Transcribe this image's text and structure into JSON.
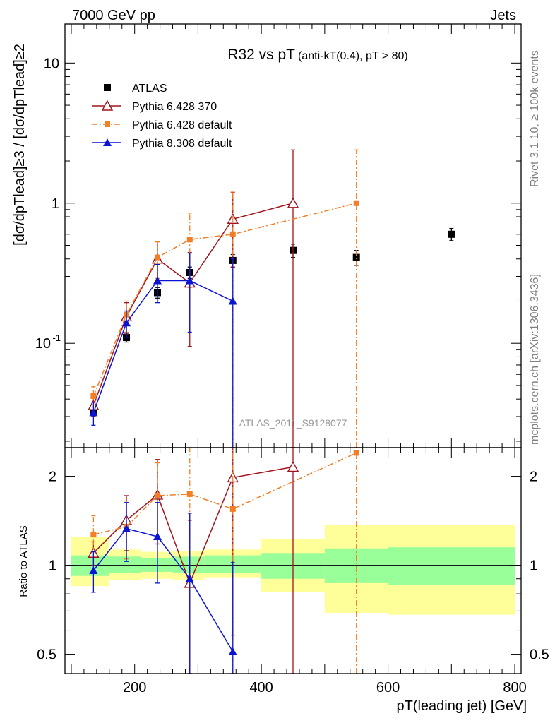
{
  "header": {
    "left": "7000 GeV pp",
    "right": "Jets"
  },
  "side_texts": {
    "right_top": "Rivet 3.1.10, ≥ 100k events",
    "right_bottom": "mcplots.cern.ch [arXiv:1306.3436]"
  },
  "chart_data": [
    {
      "type": "line",
      "title": "R32 vs pT",
      "subtitle": "(anti-kT(0.4), pT > 80)",
      "ylabel": "[dσ/dpTlead]≥3 / [dσ/dpTlead]≥2",
      "xlabel": "",
      "yscale": "log",
      "xlim": [
        90,
        810
      ],
      "ylim": [
        0.018,
        19
      ],
      "y_ticks": [
        "10",
        "1",
        "10^-1"
      ],
      "analysis_label": "ATLAS_2011_S9128077",
      "legend_position": "top-left",
      "series": [
        {
          "name": "ATLAS",
          "color": "#000000",
          "marker": "square-filled",
          "x": [
            135,
            187,
            236,
            287,
            355,
            450,
            550,
            700
          ],
          "y": [
            0.033,
            0.11,
            0.23,
            0.32,
            0.39,
            0.46,
            0.41,
            0.6
          ],
          "err_low": [
            0.003,
            0.008,
            0.02,
            0.03,
            0.04,
            0.05,
            0.05,
            0.06
          ],
          "err_high": [
            0.003,
            0.008,
            0.02,
            0.03,
            0.04,
            0.05,
            0.05,
            0.06
          ]
        },
        {
          "name": "Pythia 6.428 370",
          "color": "#a0141e",
          "marker": "triangle-open",
          "x": [
            135,
            187,
            236,
            287,
            355,
            450
          ],
          "y": [
            0.036,
            0.155,
            0.4,
            0.27,
            0.77,
            1.0
          ],
          "err_low": [
            0.006,
            0.04,
            0.13,
            0.175,
            0.42,
            1.0
          ],
          "err_high": [
            0.006,
            0.04,
            0.13,
            0.175,
            0.42,
            1.4
          ]
        },
        {
          "name": "Pythia 6.428 default",
          "color": "#f07f28",
          "marker": "square-small",
          "dash": "dashdot",
          "x": [
            135,
            187,
            236,
            287,
            355,
            550
          ],
          "y": [
            0.042,
            0.16,
            0.41,
            0.55,
            0.6,
            1.0
          ],
          "err_low": [
            0.007,
            0.04,
            0.12,
            0.3,
            0.6,
            1.0
          ],
          "err_high": [
            0.007,
            0.04,
            0.12,
            0.3,
            0.6,
            1.4
          ]
        },
        {
          "name": "Pythia 8.308 default",
          "color": "#0a14d2",
          "marker": "triangle-filled",
          "x": [
            135,
            187,
            236,
            287,
            355
          ],
          "y": [
            0.032,
            0.14,
            0.28,
            0.28,
            0.2
          ],
          "err_low": [
            0.006,
            0.03,
            0.085,
            0.16,
            0.2
          ],
          "err_high": [
            0.006,
            0.03,
            0.085,
            0.16,
            0.2
          ]
        }
      ]
    },
    {
      "type": "line",
      "title": "",
      "xlabel": "pT(leading jet) [GeV]",
      "ylabel": "Ratio to ATLAS",
      "xlim": [
        90,
        810
      ],
      "ylim": [
        0.43,
        2.5
      ],
      "yscale": "log",
      "x_ticks": [
        200,
        400,
        600,
        800
      ],
      "y_ticks": [
        "0.5",
        "1",
        "2"
      ],
      "reference_line": 1,
      "uncertainty_bands": {
        "x_edges": [
          100,
          160,
          210,
          260,
          310,
          400,
          500,
          600,
          800
        ],
        "stat_low": [
          0.92,
          0.94,
          0.95,
          0.94,
          0.94,
          0.9,
          0.87,
          0.86
        ],
        "stat_high": [
          1.08,
          1.07,
          1.06,
          1.07,
          1.08,
          1.1,
          1.14,
          1.15
        ],
        "total_low": [
          0.85,
          0.89,
          0.9,
          0.89,
          0.91,
          0.81,
          0.69,
          0.68
        ],
        "total_high": [
          1.25,
          1.13,
          1.11,
          1.12,
          1.13,
          1.23,
          1.37,
          1.37
        ],
        "stat_color": "#99ff99",
        "total_color": "#ffff99"
      },
      "series": [
        {
          "name": "Pythia 6.428 370",
          "color": "#a0141e",
          "marker": "triangle-open",
          "x": [
            135,
            187,
            236,
            287,
            355,
            450
          ],
          "y": [
            1.1,
            1.42,
            1.73,
            0.87,
            1.98,
            2.15
          ],
          "err_low": [
            0.1,
            0.3,
            0.55,
            0.5,
            1.4,
            1.8
          ],
          "err_high": [
            0.1,
            0.3,
            0.55,
            0.55,
            1.4,
            1.8
          ]
        },
        {
          "name": "Pythia 6.428 default",
          "color": "#f07f28",
          "marker": "square-small",
          "dash": "dashdot",
          "x": [
            135,
            187,
            236,
            287,
            355,
            550
          ],
          "y": [
            1.27,
            1.35,
            1.72,
            1.74,
            1.55,
            2.4
          ],
          "err_low": [
            0.2,
            0.3,
            0.5,
            0.9,
            1.2,
            2.2
          ],
          "err_high": [
            0.2,
            0.3,
            0.5,
            0.9,
            1.2,
            2.2
          ]
        },
        {
          "name": "Pythia 8.308 default",
          "color": "#0a14d2",
          "marker": "triangle-filled",
          "x": [
            135,
            187,
            236,
            287,
            355
          ],
          "y": [
            0.96,
            1.33,
            1.25,
            0.9,
            0.51
          ],
          "err_low": [
            0.15,
            0.3,
            0.38,
            0.6,
            0.51
          ],
          "err_high": [
            0.15,
            0.3,
            0.38,
            0.6,
            0.51
          ]
        }
      ]
    }
  ]
}
